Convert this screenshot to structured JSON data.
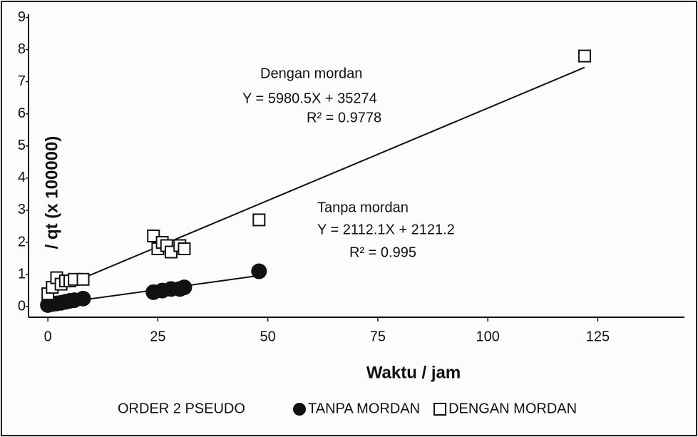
{
  "chart_data": {
    "type": "scatter",
    "xlabel": "Waktu / jam",
    "ylabel": "/ qt (x 100000)",
    "xlim": [
      -4.4,
      144.7
    ],
    "ylim": [
      -0.33,
      9.1
    ],
    "xticks": [
      0,
      25,
      50,
      75,
      100,
      125
    ],
    "yticks": [
      0,
      1,
      2,
      3,
      4,
      5,
      6,
      7,
      8,
      9
    ],
    "legend_title": "ORDER 2 PSEUDO",
    "series": [
      {
        "name": "TANPA MORDAN",
        "marker": "circle",
        "color": "#111111",
        "x": [
          0,
          1,
          2,
          3,
          4,
          5,
          6,
          8,
          24,
          26,
          28,
          30,
          31,
          48
        ],
        "values": [
          0.05,
          0.08,
          0.1,
          0.12,
          0.15,
          0.18,
          0.2,
          0.25,
          0.45,
          0.5,
          0.55,
          0.55,
          0.6,
          1.1
        ]
      },
      {
        "name": "DENGAN MORDAN",
        "marker": "square",
        "color": "#111111",
        "x": [
          0,
          1,
          2,
          3,
          4,
          5,
          6,
          8,
          24,
          25,
          26,
          27,
          28,
          30,
          31,
          48,
          122
        ],
        "values": [
          0.4,
          0.6,
          0.9,
          0.7,
          0.8,
          0.8,
          0.85,
          0.85,
          2.2,
          1.8,
          2.0,
          1.9,
          1.7,
          1.9,
          1.8,
          2.7,
          7.8
        ]
      }
    ],
    "annotations": [
      {
        "text": "Dengan mordan"
      },
      {
        "text": "Y = 5980.5X + 35274"
      },
      {
        "text": "R² = 0.9778"
      },
      {
        "text": "Tanpa mordan"
      },
      {
        "text": "Y = 2112.1X + 2121.2"
      },
      {
        "text": "R² = 0.995"
      }
    ]
  }
}
